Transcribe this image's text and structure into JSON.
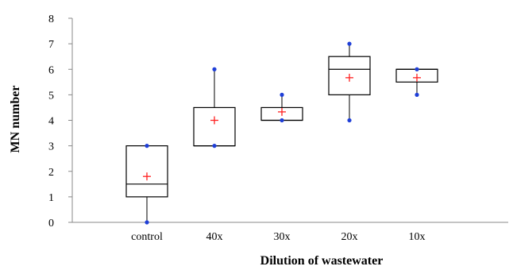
{
  "chart_data": {
    "type": "box",
    "xlabel": "Dilution of wastewater",
    "ylabel": "MN number",
    "ylim": [
      0,
      8
    ],
    "yticks": [
      0,
      1,
      2,
      3,
      4,
      5,
      6,
      7,
      8
    ],
    "categories": [
      "control",
      "40x",
      "30x",
      "20x",
      "10x"
    ],
    "boxes": [
      {
        "category": "control",
        "min": 0,
        "q1": 1,
        "median": 1.5,
        "q3": 3,
        "max": 3,
        "mean": 1.8,
        "points": [
          0,
          3
        ]
      },
      {
        "category": "40x",
        "min": 3,
        "q1": 3,
        "median": 3,
        "q3": 4.5,
        "max": 6,
        "mean": 4,
        "points": [
          3,
          6
        ]
      },
      {
        "category": "30x",
        "min": 4,
        "q1": 4,
        "median": 4,
        "q3": 4.5,
        "max": 5,
        "mean": 4.33,
        "points": [
          4,
          5
        ]
      },
      {
        "category": "20x",
        "min": 4,
        "q1": 5,
        "median": 6,
        "q3": 6.5,
        "max": 7,
        "mean": 5.67,
        "points": [
          4,
          7
        ]
      },
      {
        "category": "10x",
        "min": 5,
        "q1": 5.5,
        "median": 6,
        "q3": 6,
        "max": 6,
        "mean": 5.67,
        "points": [
          5,
          6
        ]
      }
    ],
    "colors": {
      "box": "#000000",
      "whisker_point": "#1f3fd8",
      "mean": "#ff2020"
    }
  }
}
